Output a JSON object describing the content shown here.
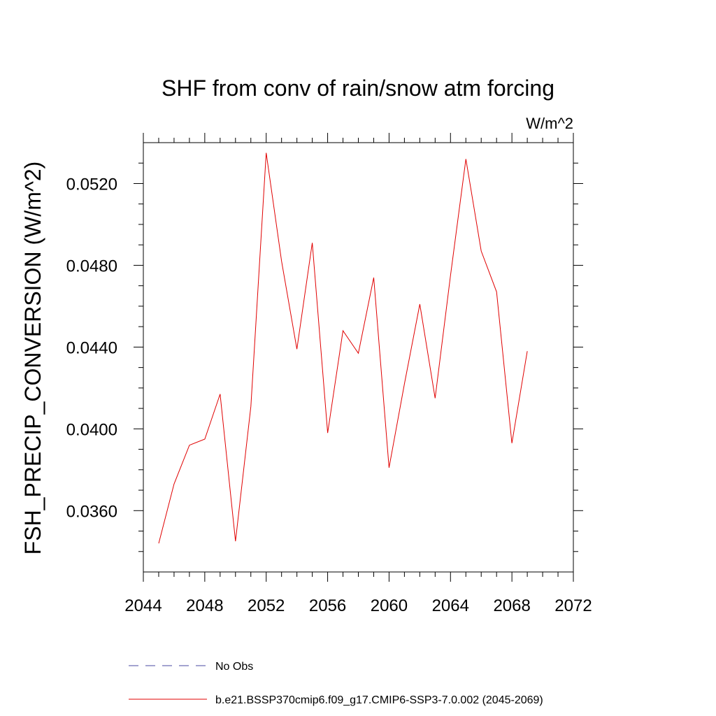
{
  "chart_data": {
    "type": "line",
    "title": "SHF from conv of rain/snow atm forcing",
    "units_label": "W/m^2",
    "xlabel": "",
    "ylabel": "FSH_PRECIP_CONVERSION  (W/m^2)",
    "xlim": [
      2044,
      2072
    ],
    "ylim": [
      0.033,
      0.054
    ],
    "x_ticks": [
      2044,
      2048,
      2052,
      2056,
      2060,
      2064,
      2068,
      2072
    ],
    "x_tick_labels": [
      "2044",
      "2048",
      "2052",
      "2056",
      "2060",
      "2064",
      "2068",
      "2072"
    ],
    "y_ticks": [
      0.036,
      0.04,
      0.044,
      0.048,
      0.052
    ],
    "y_tick_labels": [
      "0.0360",
      "0.0400",
      "0.0440",
      "0.0480",
      "0.0520"
    ],
    "grid": false,
    "legend_position": "bottom",
    "series": [
      {
        "name": "No Obs",
        "color": "#4a4aa0",
        "style": "dashed",
        "x": [],
        "y": []
      },
      {
        "name": "b.e21.BSSP370cmip6.f09_g17.CMIP6-SSP3-7.0.002 (2045-2069)",
        "color": "#e00000",
        "style": "solid",
        "x": [
          2045,
          2046,
          2047,
          2048,
          2049,
          2050,
          2051,
          2052,
          2053,
          2054,
          2055,
          2056,
          2057,
          2058,
          2059,
          2060,
          2061,
          2062,
          2063,
          2064,
          2065,
          2066,
          2067,
          2068,
          2069
        ],
        "y": [
          0.0344,
          0.0373,
          0.0392,
          0.0395,
          0.0417,
          0.0345,
          0.0411,
          0.0535,
          0.0482,
          0.0439,
          0.0491,
          0.0398,
          0.0448,
          0.0437,
          0.0474,
          0.0381,
          0.0422,
          0.0461,
          0.0415,
          0.0475,
          0.0532,
          0.0487,
          0.0467,
          0.0393,
          0.0438
        ]
      }
    ]
  }
}
